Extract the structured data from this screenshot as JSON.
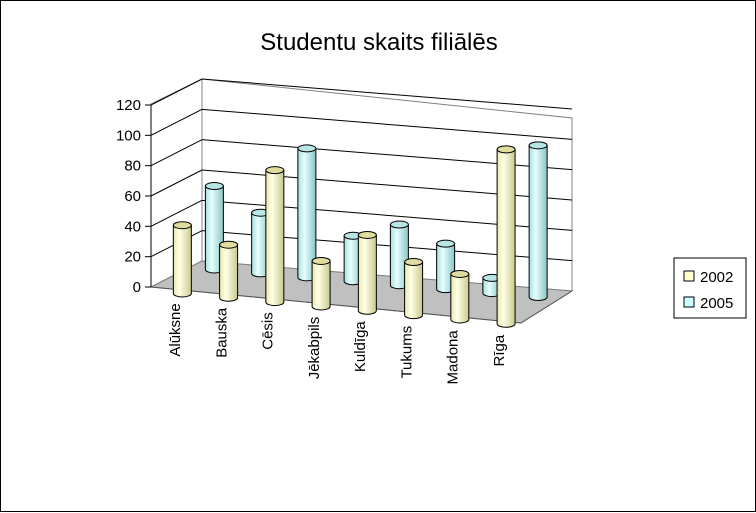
{
  "chart_data": {
    "type": "bar",
    "title": "Studentu skaits filiālēs",
    "xlabel": "",
    "ylabel": "",
    "categories": [
      "Alūksne",
      "Bauska",
      "Cēsis",
      "Jēkabpils",
      "Kuldīga",
      "Tukums",
      "Madona",
      "Rīga"
    ],
    "series": [
      {
        "name": "2002",
        "color": "#ffffcc",
        "values": [
          45,
          35,
          87,
          30,
          50,
          35,
          30,
          115
        ]
      },
      {
        "name": "2005",
        "color": "#ccffff",
        "values": [
          55,
          40,
          85,
          30,
          40,
          30,
          10,
          100
        ]
      }
    ],
    "yticks": [
      "0",
      "20",
      "40",
      "60",
      "80",
      "100",
      "120"
    ],
    "ylim": [
      0,
      120
    ],
    "grid": true,
    "legend_position": "right",
    "style": "3d-cylinder"
  }
}
